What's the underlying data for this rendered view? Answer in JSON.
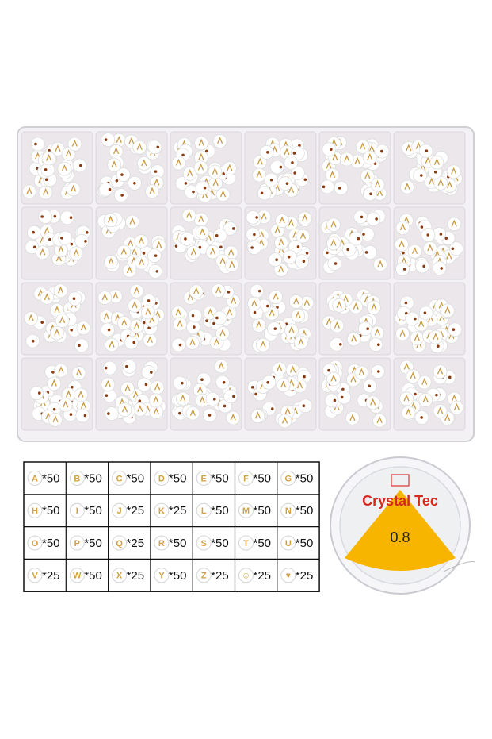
{
  "table": {
    "rows": [
      [
        {
          "bead": "A",
          "count": "*50"
        },
        {
          "bead": "B",
          "count": "*50"
        },
        {
          "bead": "C",
          "count": "*50"
        },
        {
          "bead": "D",
          "count": "*50"
        },
        {
          "bead": "E",
          "count": "*50"
        },
        {
          "bead": "F",
          "count": "*50"
        },
        {
          "bead": "G",
          "count": "*50"
        }
      ],
      [
        {
          "bead": "H",
          "count": "*50"
        },
        {
          "bead": "I",
          "count": "*50"
        },
        {
          "bead": "J",
          "count": "*25"
        },
        {
          "bead": "K",
          "count": "*25"
        },
        {
          "bead": "L",
          "count": "*50"
        },
        {
          "bead": "M",
          "count": "*50"
        },
        {
          "bead": "N",
          "count": "*50"
        }
      ],
      [
        {
          "bead": "O",
          "count": "*50"
        },
        {
          "bead": "P",
          "count": "*50"
        },
        {
          "bead": "Q",
          "count": "*25"
        },
        {
          "bead": "R",
          "count": "*50"
        },
        {
          "bead": "S",
          "count": "*50"
        },
        {
          "bead": "T",
          "count": "*50"
        },
        {
          "bead": "U",
          "count": "*50"
        }
      ],
      [
        {
          "bead": "V",
          "count": "*25"
        },
        {
          "bead": "W",
          "count": "*50"
        },
        {
          "bead": "X",
          "count": "*25"
        },
        {
          "bead": "Y",
          "count": "*50"
        },
        {
          "bead": "Z",
          "count": "*25"
        },
        {
          "bead": "☺",
          "count": "*25"
        },
        {
          "bead": "♥",
          "count": "*25"
        }
      ]
    ]
  },
  "spool": {
    "brand": "Crystal Tec",
    "size": "0.8"
  }
}
